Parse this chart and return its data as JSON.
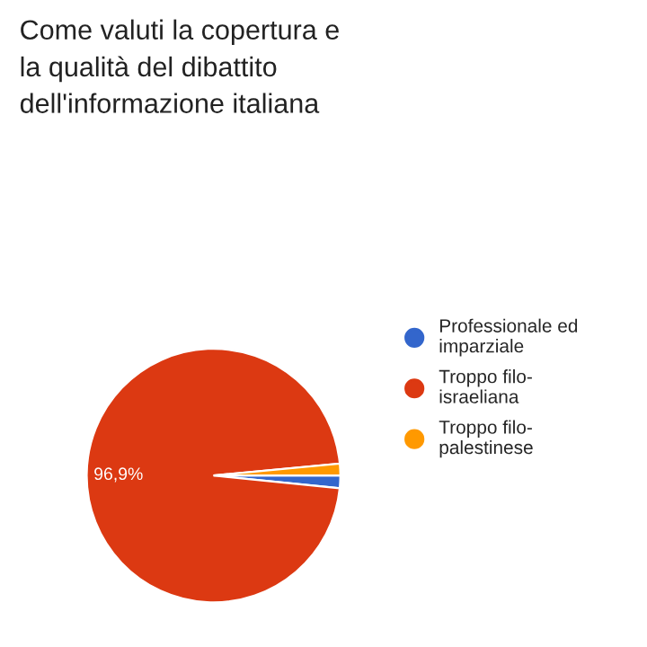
{
  "chart_data": {
    "type": "pie",
    "title": "Come valuti la copertura e\nla qualità del dibattito\ndell'informazione italiana",
    "categories": [
      "Professionale ed\nimparziale",
      "Troppo filo-\nisraeliana",
      "Troppo filo-\npalestinese"
    ],
    "values": [
      1.6,
      96.9,
      1.5
    ],
    "colors": [
      "#3366cc",
      "#dc3912",
      "#ff9900"
    ],
    "value_labels": [
      null,
      "96,9%",
      null
    ],
    "legend": "right"
  }
}
